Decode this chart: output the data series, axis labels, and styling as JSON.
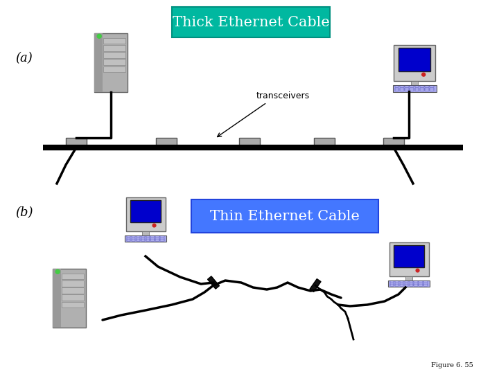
{
  "background_color": "#ffffff",
  "title_thick": "Thick Ethernet Cable",
  "title_thin": "Thin Ethernet Cable",
  "label_a": "(a)",
  "label_b": "(b)",
  "transceivers_label": "transceivers",
  "figure_label": "Figure 6. 55",
  "thick_box_color": "#00b8a0",
  "thin_box_color": "#4477ff",
  "thick_box_text_color": "#ffffff",
  "thin_box_text_color": "#ffffff",
  "label_color": "#000000",
  "computer_blue": "#0000cc",
  "figsize": [
    7.2,
    5.4
  ],
  "dpi": 100
}
